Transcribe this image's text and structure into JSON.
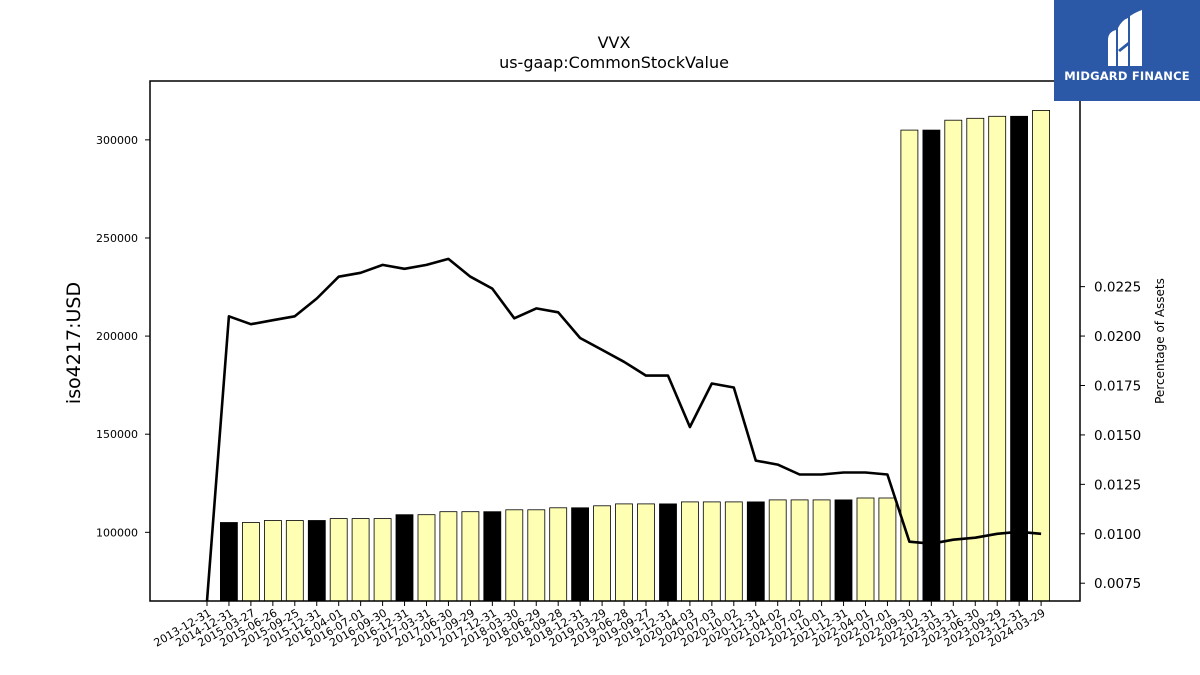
{
  "logo": {
    "text": "MIDGARD FINANCE",
    "background": "#2b59a8"
  },
  "chart_data": {
    "type": "bar",
    "title": "VVX",
    "subtitle": "us-gaap:CommonStockValue",
    "ylabel": "iso4217:USD",
    "y2label": "Percentage of Assets",
    "ylim": [
      65000,
      330000
    ],
    "y2lim": [
      0.0066,
      0.0329
    ],
    "yticks": [
      100000,
      150000,
      200000,
      250000,
      300000
    ],
    "y2ticks": [
      "0.0075",
      "0.0100",
      "0.0125",
      "0.0150",
      "0.0175",
      "0.0200",
      "0.0225"
    ],
    "bar_colors": {
      "annual": "#000000",
      "quarterly": "#ffffb3",
      "edge": "#000000"
    },
    "line_color": "#000000",
    "categories": [
      "2013-12-31",
      "2014-12-31",
      "2015-03-27",
      "2015-06-26",
      "2015-09-25",
      "2015-12-31",
      "2016-04-01",
      "2016-07-01",
      "2016-09-30",
      "2016-12-31",
      "2017-03-31",
      "2017-06-30",
      "2017-09-29",
      "2017-12-31",
      "2018-03-30",
      "2018-06-29",
      "2018-09-28",
      "2018-12-31",
      "2019-03-29",
      "2019-06-28",
      "2019-09-27",
      "2019-12-31",
      "2020-04-03",
      "2020-07-03",
      "2020-10-02",
      "2020-12-31",
      "2021-04-02",
      "2021-07-02",
      "2021-10-01",
      "2021-12-31",
      "2022-04-01",
      "2022-07-01",
      "2022-09-30",
      "2022-12-31",
      "2023-03-31",
      "2023-06-30",
      "2023-09-29",
      "2023-12-31",
      "2024-03-29"
    ],
    "values": [
      null,
      105000,
      105000,
      106000,
      106000,
      106000,
      107000,
      107000,
      107000,
      109000,
      109000,
      110500,
      110500,
      110500,
      111500,
      111500,
      112500,
      112500,
      113500,
      114500,
      114500,
      114500,
      115500,
      115500,
      115500,
      115500,
      116500,
      116500,
      116500,
      116500,
      117500,
      117500,
      305000,
      305000,
      310000,
      311000,
      312000,
      312000,
      315000
    ],
    "annual": [
      false,
      true,
      false,
      false,
      false,
      true,
      false,
      false,
      false,
      true,
      false,
      false,
      false,
      true,
      false,
      false,
      false,
      true,
      false,
      false,
      false,
      true,
      false,
      false,
      false,
      true,
      false,
      false,
      false,
      true,
      false,
      false,
      false,
      true,
      false,
      false,
      false,
      true,
      false
    ],
    "line_series": {
      "name": "Percentage of Assets",
      "values": [
        0.0048,
        0.021,
        0.0206,
        0.0208,
        0.021,
        0.0219,
        0.023,
        0.0232,
        0.0236,
        0.0234,
        0.0236,
        0.0239,
        0.023,
        0.0224,
        0.0209,
        0.0214,
        0.0212,
        0.0199,
        0.0193,
        0.0187,
        0.018,
        0.018,
        0.0154,
        0.0176,
        0.0174,
        0.0137,
        0.0135,
        0.013,
        0.013,
        0.0131,
        0.0131,
        0.013,
        0.0096,
        0.0095,
        0.0097,
        0.0098,
        0.01,
        0.0101,
        0.01
      ]
    }
  }
}
